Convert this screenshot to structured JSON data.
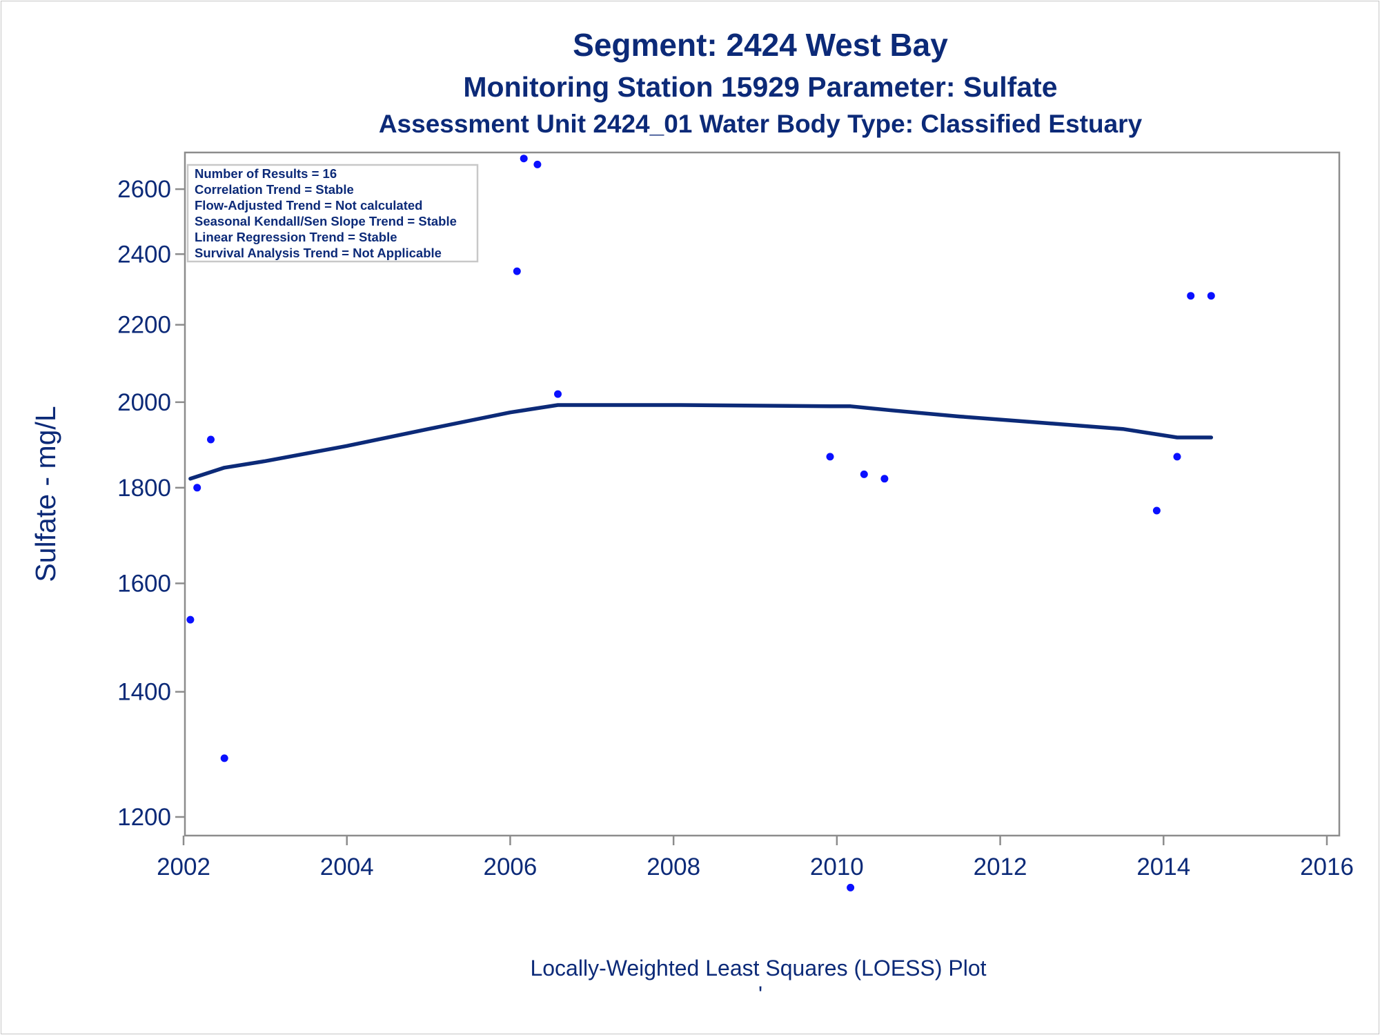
{
  "chart_data": {
    "type": "scatter",
    "title": "Segment: 2424  West Bay",
    "subtitle": "Monitoring Station 15929 Parameter: Sulfate",
    "subtitle2": "Assessment Unit 2424_01   Water Body Type: Classified Estuary",
    "xlabel": "",
    "ylabel": "Sulfate - mg/L",
    "footnote": "Locally-Weighted Least Squares (LOESS) Plot",
    "footnote_mark": "'",
    "x_scale": "time (years)",
    "y_scale": "log",
    "xlim": [
      2002,
      2016
    ],
    "ylim": [
      1105,
      2720
    ],
    "x_ticks": [
      "2002",
      "2004",
      "2006",
      "2008",
      "2010",
      "2012",
      "2014",
      "2016"
    ],
    "y_ticks": [
      "1200",
      "1400",
      "1600",
      "1800",
      "2000",
      "2200",
      "2400",
      "2600"
    ],
    "grid": false,
    "legend": {
      "placement": "top-left",
      "lines": [
        "Number of Results = 16",
        "Correlation Trend = Stable",
        "Flow-Adjusted Trend = Not calculated",
        "Seasonal Kendall/Sen Slope Trend = Stable",
        "Linear Regression Trend = Stable",
        "Survival Analysis Trend = Not Applicable"
      ]
    },
    "points": [
      {
        "x": "2002-02",
        "y": 1530
      },
      {
        "x": "2002-03",
        "y": 1800
      },
      {
        "x": "2002-05",
        "y": 1910
      },
      {
        "x": "2002-07",
        "y": 1290
      },
      {
        "x": "2006-02",
        "y": 2350
      },
      {
        "x": "2006-03",
        "y": 2700
      },
      {
        "x": "2006-05",
        "y": 2680
      },
      {
        "x": "2006-08",
        "y": 2020
      },
      {
        "x": "2009-12",
        "y": 1870
      },
      {
        "x": "2010-03",
        "y": 1100
      },
      {
        "x": "2010-05",
        "y": 1830
      },
      {
        "x": "2010-08",
        "y": 1820
      },
      {
        "x": "2013-12",
        "y": 1750
      },
      {
        "x": "2014-03",
        "y": 1870
      },
      {
        "x": "2014-05",
        "y": 2280
      },
      {
        "x": "2014-08",
        "y": 2280
      }
    ],
    "loess": [
      {
        "x": "2002-02",
        "y": 1820
      },
      {
        "x": "2002-07",
        "y": 1845
      },
      {
        "x": "2003-01",
        "y": 1860
      },
      {
        "x": "2004-01",
        "y": 1895
      },
      {
        "x": "2005-01",
        "y": 1935
      },
      {
        "x": "2006-01",
        "y": 1975
      },
      {
        "x": "2006-08",
        "y": 1993
      },
      {
        "x": "2008-02",
        "y": 1993
      },
      {
        "x": "2009-12",
        "y": 1990
      },
      {
        "x": "2010-03",
        "y": 1990
      },
      {
        "x": "2010-09",
        "y": 1980
      },
      {
        "x": "2011-07",
        "y": 1965
      },
      {
        "x": "2012-07",
        "y": 1950
      },
      {
        "x": "2013-07",
        "y": 1935
      },
      {
        "x": "2014-03",
        "y": 1915
      },
      {
        "x": "2014-08",
        "y": 1915
      }
    ],
    "colors": {
      "text": "#0c2a78",
      "points": "#0a10ff",
      "line": "#0c2a78",
      "axis": "#8c8c8c",
      "legend_border": "#c8c8c8"
    }
  }
}
